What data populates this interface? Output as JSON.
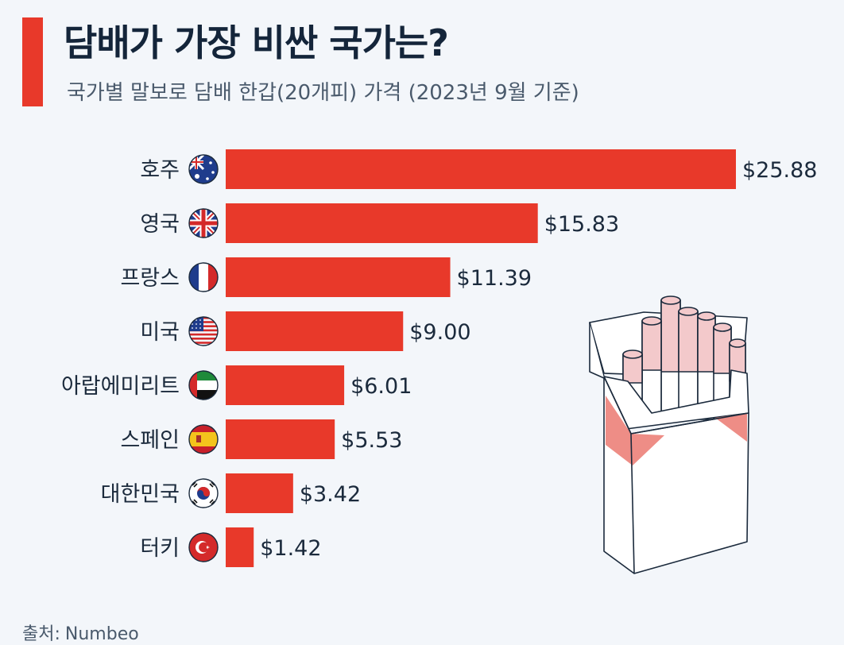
{
  "title": "담배가 가장 비싼 국가는?",
  "subtitle": "국가별 말보로 담배 한갑(20개피) 가격 (2023년 9월 기준)",
  "source": {
    "label": "출처:",
    "value": "Numbeo"
  },
  "colors": {
    "accent": "#e8392a",
    "bar": "#e8392a",
    "text": "#1b2a3c",
    "background": "#f3f6fa"
  },
  "chart_data": {
    "type": "bar",
    "orientation": "horizontal",
    "title": "담배가 가장 비싼 국가는?",
    "subtitle": "국가별 말보로 담배 한갑(20개피) 가격 (2023년 9월 기준)",
    "categories": [
      "호주",
      "영국",
      "프랑스",
      "미국",
      "아랍에미리트",
      "스페인",
      "대한민국",
      "터키"
    ],
    "flags": [
      "australia-flag-icon",
      "uk-flag-icon",
      "france-flag-icon",
      "usa-flag-icon",
      "uae-flag-icon",
      "spain-flag-icon",
      "korea-flag-icon",
      "turkey-flag-icon"
    ],
    "values": [
      25.88,
      15.83,
      11.39,
      9.0,
      6.01,
      5.53,
      3.42,
      1.42
    ],
    "value_labels": [
      "$25.88",
      "$15.83",
      "$11.39",
      "$9.00",
      "$6.01",
      "$5.53",
      "$3.42",
      "$1.42"
    ],
    "xlabel": "",
    "ylabel": "",
    "xlim": [
      0,
      25.88
    ],
    "grid": false,
    "legend": "none"
  }
}
